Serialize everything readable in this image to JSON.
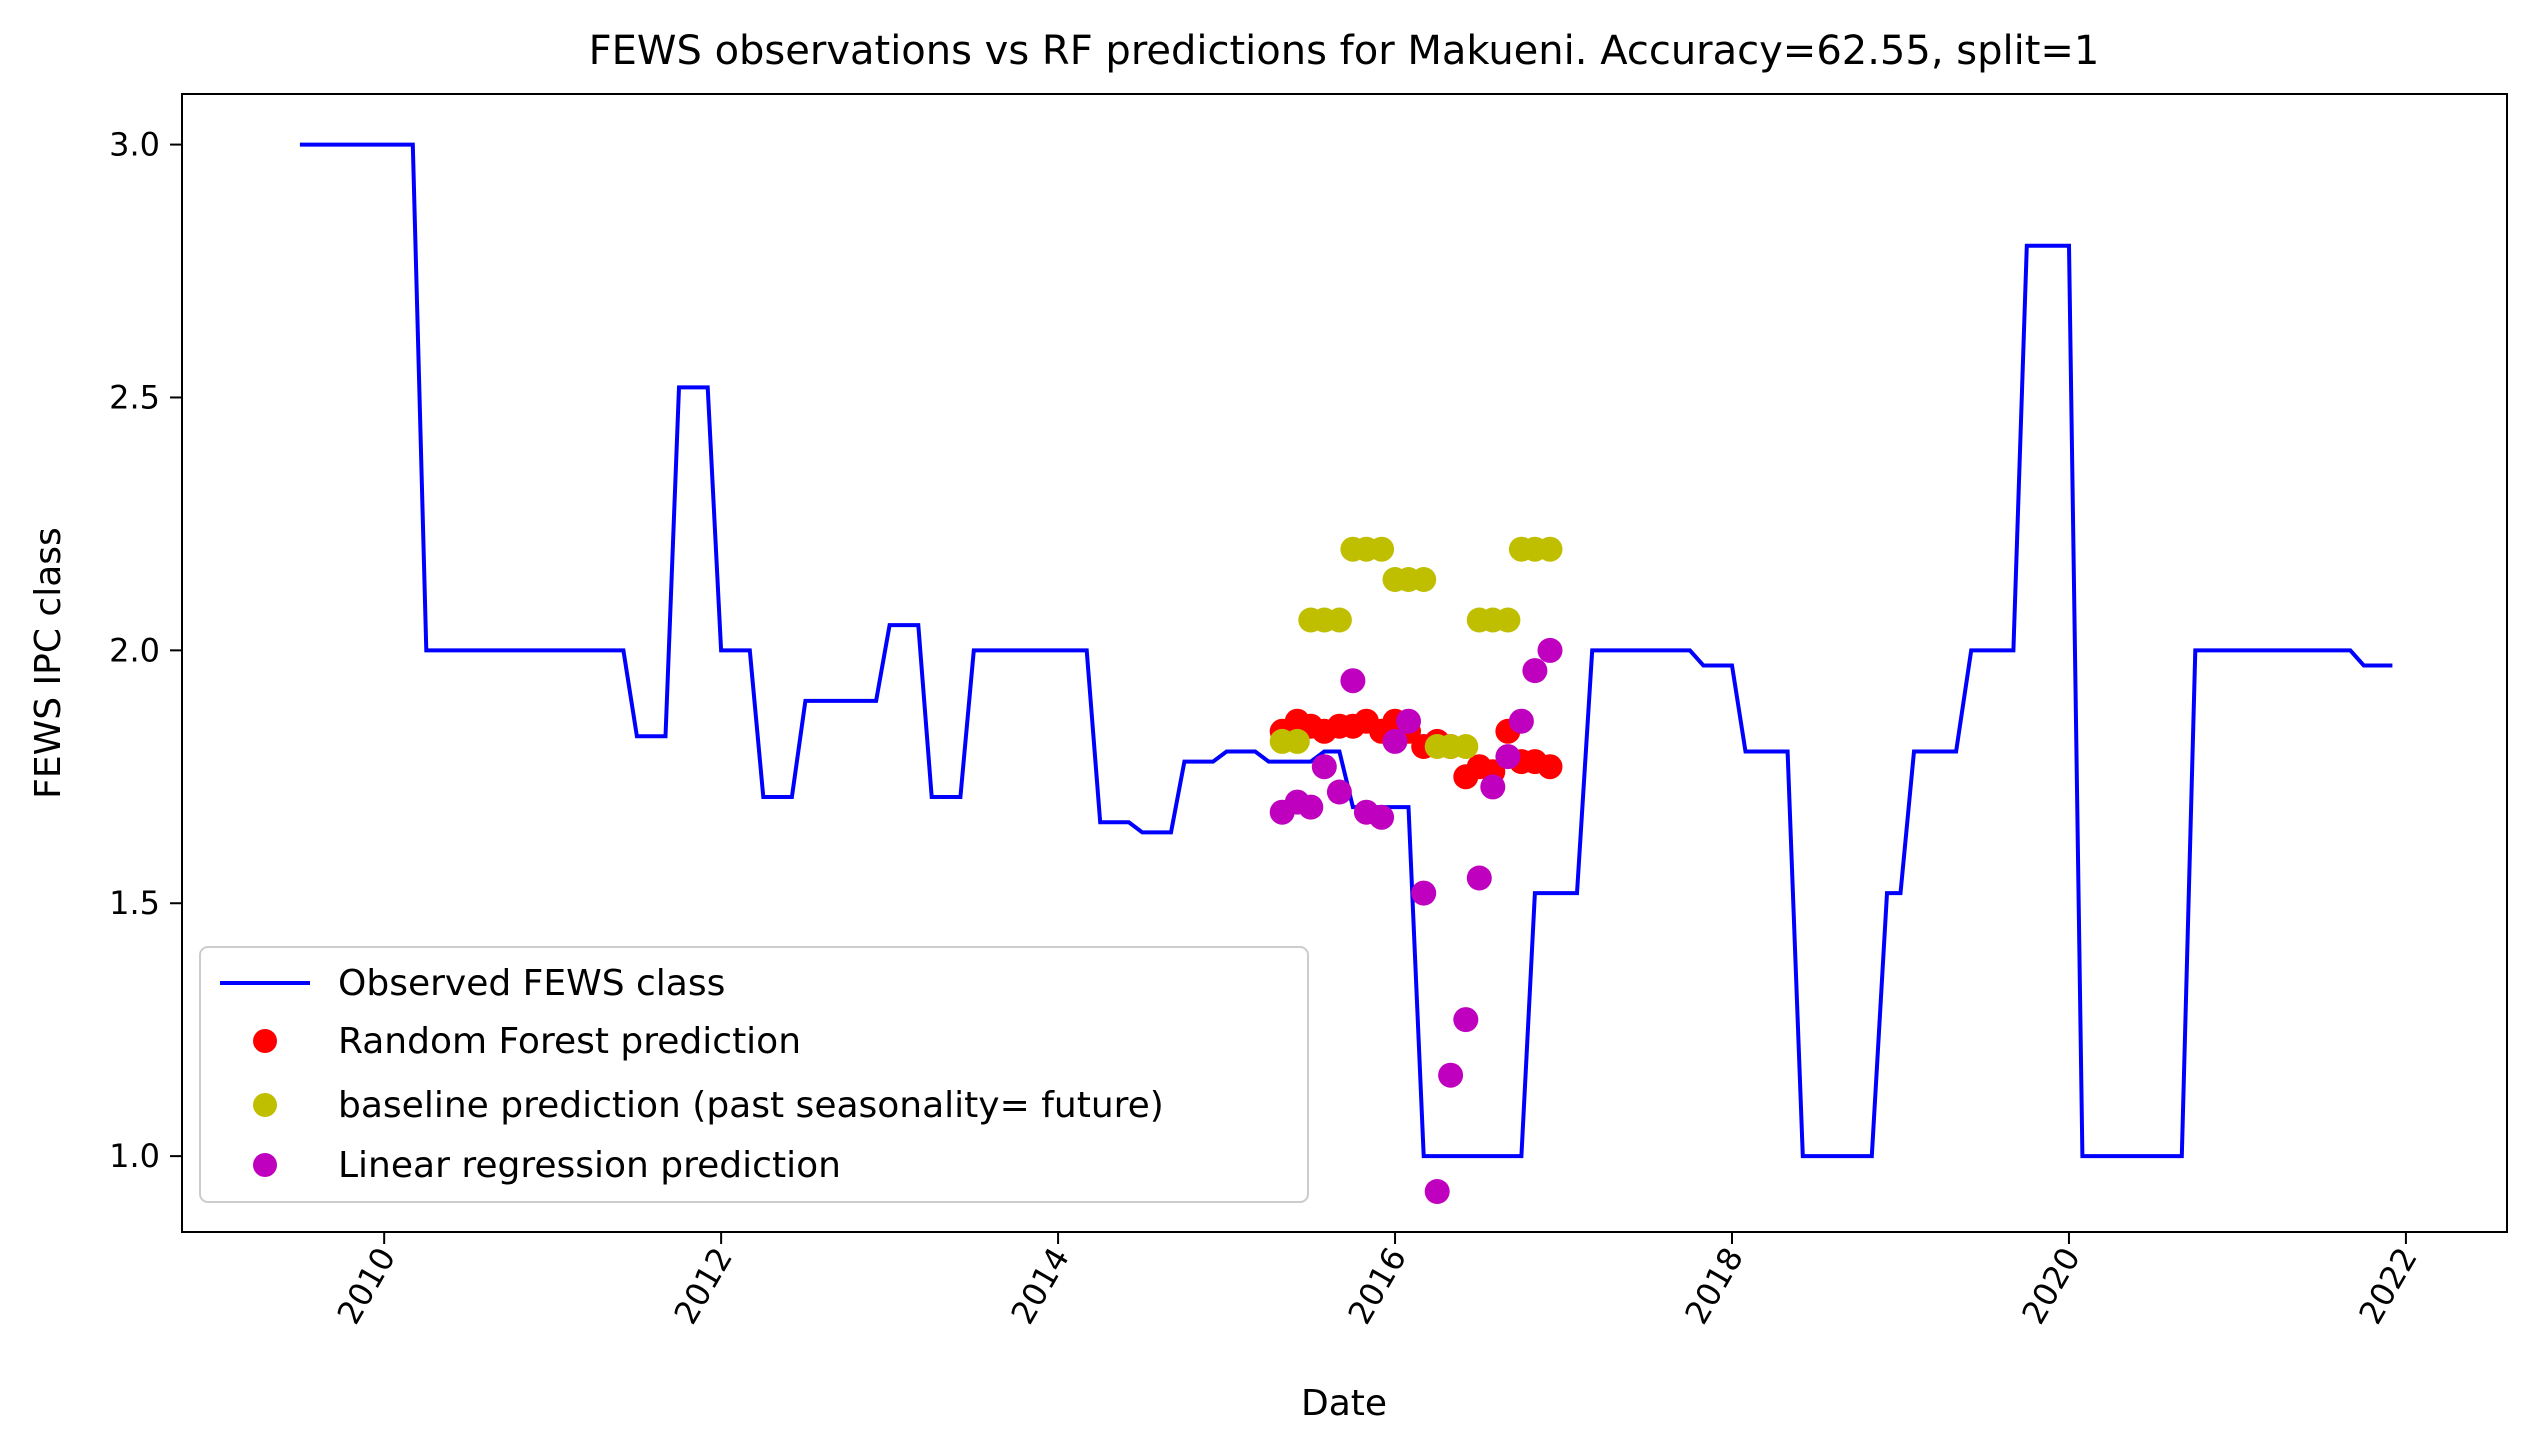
{
  "chart_data": {
    "type": "line",
    "title": "FEWS observations vs RF predictions for Makueni. Accuracy=62.55, split=1",
    "xlabel": "Date",
    "ylabel": "FEWS IPC class",
    "xlim": [
      2008.8,
      2022.6
    ],
    "ylim": [
      0.85,
      3.1
    ],
    "x_ticks": [
      2010,
      2012,
      2014,
      2016,
      2018,
      2020,
      2022
    ],
    "x_tick_labels": [
      "2010",
      "2012",
      "2014",
      "2016",
      "2018",
      "2020",
      "2022"
    ],
    "y_ticks": [
      1.0,
      1.5,
      2.0,
      2.5,
      3.0
    ],
    "y_tick_labels": [
      "1.0",
      "1.5",
      "2.0",
      "2.5",
      "3.0"
    ],
    "grid": false,
    "legend_position": "lower-left",
    "series": [
      {
        "name": "Observed FEWS class",
        "kind": "line",
        "color": "#0000ff",
        "points": [
          [
            2009.5,
            3.0
          ],
          [
            2010.17,
            3.0
          ],
          [
            2010.25,
            2.0
          ],
          [
            2011.42,
            2.0
          ],
          [
            2011.5,
            1.83
          ],
          [
            2011.67,
            1.83
          ],
          [
            2011.75,
            2.52
          ],
          [
            2011.92,
            2.52
          ],
          [
            2012.0,
            2.0
          ],
          [
            2012.17,
            2.0
          ],
          [
            2012.25,
            1.71
          ],
          [
            2012.42,
            1.71
          ],
          [
            2012.5,
            1.9
          ],
          [
            2012.92,
            1.9
          ],
          [
            2013.0,
            2.05
          ],
          [
            2013.17,
            2.05
          ],
          [
            2013.25,
            1.71
          ],
          [
            2013.42,
            1.71
          ],
          [
            2013.5,
            2.0
          ],
          [
            2014.17,
            2.0
          ],
          [
            2014.25,
            1.66
          ],
          [
            2014.42,
            1.66
          ],
          [
            2014.5,
            1.64
          ],
          [
            2014.67,
            1.64
          ],
          [
            2014.75,
            1.78
          ],
          [
            2014.92,
            1.78
          ],
          [
            2015.0,
            1.8
          ],
          [
            2015.17,
            1.8
          ],
          [
            2015.25,
            1.78
          ],
          [
            2015.5,
            1.78
          ],
          [
            2015.58,
            1.8
          ],
          [
            2015.67,
            1.8
          ],
          [
            2015.75,
            1.69
          ],
          [
            2016.08,
            1.69
          ],
          [
            2016.17,
            1.0
          ],
          [
            2016.75,
            1.0
          ],
          [
            2016.83,
            1.52
          ],
          [
            2017.08,
            1.52
          ],
          [
            2017.17,
            2.0
          ],
          [
            2017.75,
            2.0
          ],
          [
            2017.83,
            1.97
          ],
          [
            2018.0,
            1.97
          ],
          [
            2018.08,
            1.8
          ],
          [
            2018.33,
            1.8
          ],
          [
            2018.42,
            1.0
          ],
          [
            2018.83,
            1.0
          ],
          [
            2018.92,
            1.52
          ],
          [
            2019.0,
            1.52
          ],
          [
            2019.08,
            1.8
          ],
          [
            2019.33,
            1.8
          ],
          [
            2019.42,
            2.0
          ],
          [
            2019.67,
            2.0
          ],
          [
            2019.75,
            2.8
          ],
          [
            2020.0,
            2.8
          ],
          [
            2020.08,
            1.0
          ],
          [
            2020.67,
            1.0
          ],
          [
            2020.75,
            2.0
          ],
          [
            2021.67,
            2.0
          ],
          [
            2021.75,
            1.97
          ],
          [
            2021.92,
            1.97
          ]
        ]
      },
      {
        "name": "Random Forest prediction",
        "kind": "scatter",
        "color": "#ff0000",
        "points": [
          [
            2015.33,
            1.84
          ],
          [
            2015.42,
            1.86
          ],
          [
            2015.5,
            1.85
          ],
          [
            2015.58,
            1.84
          ],
          [
            2015.67,
            1.85
          ],
          [
            2015.75,
            1.85
          ],
          [
            2015.83,
            1.86
          ],
          [
            2015.92,
            1.84
          ],
          [
            2016.0,
            1.86
          ],
          [
            2016.08,
            1.84
          ],
          [
            2016.17,
            1.81
          ],
          [
            2016.25,
            1.82
          ],
          [
            2016.33,
            1.81
          ],
          [
            2016.42,
            1.75
          ],
          [
            2016.5,
            1.77
          ],
          [
            2016.58,
            1.76
          ],
          [
            2016.67,
            1.84
          ],
          [
            2016.75,
            1.78
          ],
          [
            2016.83,
            1.78
          ],
          [
            2016.92,
            1.77
          ]
        ]
      },
      {
        "name": "baseline prediction (past seasonality= future)",
        "kind": "scatter",
        "color": "#bfbf00",
        "points": [
          [
            2015.33,
            1.82
          ],
          [
            2015.42,
            1.82
          ],
          [
            2015.5,
            2.06
          ],
          [
            2015.58,
            2.06
          ],
          [
            2015.67,
            2.06
          ],
          [
            2015.75,
            2.2
          ],
          [
            2015.83,
            2.2
          ],
          [
            2015.92,
            2.2
          ],
          [
            2016.0,
            2.14
          ],
          [
            2016.08,
            2.14
          ],
          [
            2016.17,
            2.14
          ],
          [
            2016.25,
            1.81
          ],
          [
            2016.33,
            1.81
          ],
          [
            2016.42,
            1.81
          ],
          [
            2016.5,
            2.06
          ],
          [
            2016.58,
            2.06
          ],
          [
            2016.67,
            2.06
          ],
          [
            2016.75,
            2.2
          ],
          [
            2016.83,
            2.2
          ],
          [
            2016.92,
            2.2
          ]
        ]
      },
      {
        "name": "Linear regression prediction",
        "kind": "scatter",
        "color": "#bf00bf",
        "points": [
          [
            2015.33,
            1.68
          ],
          [
            2015.42,
            1.7
          ],
          [
            2015.5,
            1.69
          ],
          [
            2015.58,
            1.77
          ],
          [
            2015.67,
            1.72
          ],
          [
            2015.75,
            1.94
          ],
          [
            2015.83,
            1.68
          ],
          [
            2015.92,
            1.67
          ],
          [
            2016.0,
            1.82
          ],
          [
            2016.08,
            1.86
          ],
          [
            2016.17,
            1.52
          ],
          [
            2016.25,
            0.93
          ],
          [
            2016.33,
            1.16
          ],
          [
            2016.42,
            1.27
          ],
          [
            2016.5,
            1.55
          ],
          [
            2016.58,
            1.73
          ],
          [
            2016.67,
            1.79
          ],
          [
            2016.75,
            1.86
          ],
          [
            2016.83,
            1.96
          ],
          [
            2016.92,
            2.0
          ]
        ]
      }
    ]
  }
}
